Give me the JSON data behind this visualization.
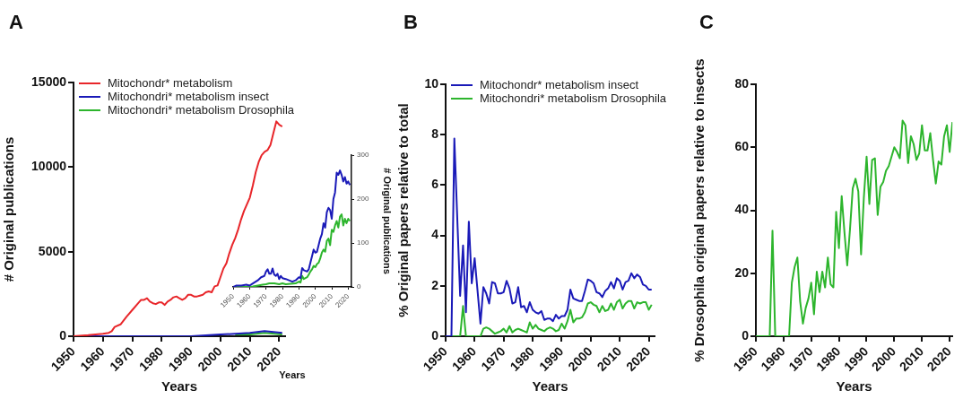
{
  "chart_data": [
    {
      "type": "line",
      "title": "A",
      "xlabel": "Years",
      "ylabel": "# Original publications",
      "xlim": [
        1950,
        2022
      ],
      "xticks": [
        1950,
        1960,
        1970,
        1980,
        1990,
        2000,
        2010,
        2020
      ],
      "ylim": [
        0,
        15000
      ],
      "yticks": [
        0,
        5000,
        10000,
        15000
      ],
      "legend": "top left",
      "series": [
        {
          "name": "Mitochondr* metabolism",
          "color": "#e8262a",
          "x": [
            1950,
            1955,
            1960,
            1962,
            1963,
            1964,
            1966,
            1968,
            1970,
            1972,
            1973,
            1974,
            1975,
            1976,
            1977,
            1978,
            1979,
            1980,
            1981,
            1982,
            1983,
            1984,
            1985,
            1986,
            1987,
            1988,
            1989,
            1990,
            1991,
            1992,
            1993,
            1994,
            1995,
            1996,
            1997,
            1998,
            1999,
            2000,
            2001,
            2002,
            2003,
            2004,
            2005,
            2006,
            2007,
            2008,
            2009,
            2010,
            2011,
            2012,
            2013,
            2014,
            2015,
            2016,
            2017,
            2018,
            2019,
            2020,
            2021
          ],
          "values": [
            0,
            60,
            150,
            200,
            300,
            550,
            700,
            1150,
            1550,
            1950,
            2150,
            2150,
            2250,
            2050,
            1950,
            1900,
            2000,
            2000,
            1850,
            2050,
            2150,
            2300,
            2350,
            2250,
            2150,
            2250,
            2450,
            2450,
            2350,
            2350,
            2400,
            2450,
            2600,
            2650,
            2600,
            2950,
            3000,
            3500,
            4000,
            4300,
            4900,
            5400,
            5800,
            6300,
            6900,
            7400,
            7800,
            8200,
            8900,
            9700,
            10300,
            10700,
            10900,
            11000,
            11300,
            12000,
            12700,
            12500,
            12400
          ]
        },
        {
          "name": "Mitochondri* metabolism insect",
          "color": "#1a1ab8",
          "x": [
            1950,
            1990,
            2000,
            2010,
            2015,
            2021
          ],
          "values": [
            0,
            0,
            100,
            200,
            300,
            200
          ]
        },
        {
          "name": "Mitochondri* metabolism Drosophila",
          "color": "#2db52d",
          "x": [
            2005,
            2010,
            2015,
            2021
          ],
          "values": [
            100,
            100,
            200,
            100
          ]
        }
      ]
    },
    {
      "type": "line",
      "xlabel": "Years",
      "ylabel": "# Original publications",
      "xlim": [
        1950,
        2022
      ],
      "xticks": [
        1950,
        1960,
        1970,
        1980,
        1990,
        2000,
        2010,
        2020
      ],
      "ylim": [
        0,
        300
      ],
      "yticks": [
        0,
        100,
        200,
        300
      ],
      "series": [
        {
          "color": "#1a1ab8",
          "x": [
            1950,
            1952,
            1955,
            1958,
            1960,
            1962,
            1965,
            1967,
            1969,
            1970,
            1971,
            1972,
            1973,
            1974,
            1975,
            1976,
            1977,
            1978,
            1979,
            1980,
            1982,
            1984,
            1986,
            1988,
            1990,
            1991,
            1992,
            1993,
            1995,
            1996,
            1997,
            1998,
            1999,
            2000,
            2001,
            2002,
            2003,
            2004,
            2005,
            2006,
            2007,
            2008,
            2009,
            2010,
            2011,
            2012,
            2013,
            2014,
            2015,
            2016,
            2017,
            2018,
            2019,
            2020,
            2021
          ],
          "values": [
            0,
            3,
            3,
            5,
            3,
            8,
            15,
            22,
            25,
            35,
            40,
            30,
            30,
            42,
            28,
            25,
            30,
            18,
            25,
            20,
            18,
            15,
            12,
            15,
            22,
            20,
            43,
            38,
            35,
            40,
            55,
            70,
            85,
            78,
            80,
            95,
            110,
            120,
            145,
            135,
            170,
            180,
            175,
            155,
            200,
            215,
            260,
            255,
            265,
            255,
            240,
            250,
            235,
            240,
            232
          ]
        },
        {
          "color": "#2db52d",
          "x": [
            1950,
            1960,
            1962,
            1965,
            1968,
            1970,
            1972,
            1975,
            1978,
            1980,
            1982,
            1985,
            1988,
            1990,
            1991,
            1992,
            1993,
            1995,
            1996,
            1997,
            1998,
            1999,
            2000,
            2001,
            2002,
            2003,
            2004,
            2005,
            2006,
            2007,
            2008,
            2009,
            2010,
            2011,
            2012,
            2013,
            2014,
            2015,
            2016,
            2017,
            2018,
            2019,
            2020,
            2021
          ],
          "values": [
            0,
            0,
            1,
            3,
            5,
            6,
            8,
            8,
            6,
            8,
            6,
            7,
            8,
            12,
            10,
            25,
            18,
            22,
            28,
            35,
            40,
            48,
            45,
            52,
            55,
            65,
            78,
            85,
            80,
            105,
            110,
            95,
            130,
            125,
            140,
            150,
            135,
            160,
            165,
            140,
            155,
            145,
            155,
            150
          ]
        }
      ]
    },
    {
      "type": "line",
      "title": "B",
      "xlabel": "Years",
      "ylabel": "% Original papers relative to total",
      "xlim": [
        1950,
        2022
      ],
      "xticks": [
        1950,
        1960,
        1970,
        1980,
        1990,
        2000,
        2010,
        2020
      ],
      "ylim": [
        0,
        10
      ],
      "yticks": [
        0,
        2,
        4,
        6,
        8,
        10
      ],
      "legend": "top left",
      "series": [
        {
          "name": "Mitochondr* metabolism insect",
          "color": "#1a1ab8",
          "x": [
            1950,
            1952,
            1953,
            1955,
            1956,
            1957,
            1958,
            1959,
            1960,
            1962,
            1963,
            1964,
            1965,
            1966,
            1967,
            1968,
            1969,
            1970,
            1971,
            1972,
            1973,
            1974,
            1975,
            1976,
            1977,
            1978,
            1979,
            1980,
            1981,
            1982,
            1983,
            1984,
            1985,
            1986,
            1987,
            1988,
            1989,
            1990,
            1991,
            1992,
            1993,
            1994,
            1995,
            1996,
            1997,
            1998,
            1999,
            2000,
            2001,
            2002,
            2003,
            2004,
            2005,
            2006,
            2007,
            2008,
            2009,
            2010,
            2011,
            2012,
            2013,
            2014,
            2015,
            2016,
            2017,
            2018,
            2019,
            2020,
            2021
          ],
          "values": [
            0,
            0,
            7.85,
            1.6,
            3.6,
            0.95,
            4.55,
            2.1,
            3.1,
            0.5,
            1.95,
            1.7,
            1.3,
            2.15,
            2.1,
            1.7,
            1.7,
            1.75,
            2.2,
            1.9,
            1.3,
            1.35,
            1.95,
            1.15,
            1.2,
            0.95,
            1.35,
            1.05,
            0.95,
            0.9,
            1.0,
            0.65,
            0.7,
            0.7,
            0.6,
            0.85,
            0.7,
            0.8,
            0.8,
            1.05,
            1.85,
            1.5,
            1.45,
            1.4,
            1.4,
            1.8,
            2.25,
            2.2,
            2.1,
            1.75,
            1.7,
            1.55,
            1.8,
            1.9,
            2.15,
            1.9,
            2.3,
            2.2,
            1.85,
            2.15,
            2.2,
            2.5,
            2.3,
            2.45,
            2.35,
            2.05,
            2.0,
            1.85,
            1.85
          ]
        },
        {
          "name": "Mitochondri* metabolism Drosophila",
          "color": "#2db52d",
          "x": [
            1950,
            1955,
            1956,
            1957,
            1962,
            1963,
            1964,
            1965,
            1966,
            1967,
            1968,
            1969,
            1970,
            1971,
            1972,
            1973,
            1974,
            1975,
            1976,
            1977,
            1978,
            1979,
            1980,
            1981,
            1982,
            1983,
            1984,
            1985,
            1986,
            1987,
            1988,
            1989,
            1990,
            1991,
            1992,
            1993,
            1994,
            1995,
            1996,
            1997,
            1998,
            1999,
            2000,
            2001,
            2002,
            2003,
            2004,
            2005,
            2006,
            2007,
            2008,
            2009,
            2010,
            2011,
            2012,
            2013,
            2014,
            2015,
            2016,
            2017,
            2018,
            2019,
            2020,
            2021
          ],
          "values": [
            0,
            0,
            1.2,
            0,
            0,
            0.3,
            0.35,
            0.3,
            0.2,
            0.1,
            0.15,
            0.2,
            0.3,
            0.15,
            0.4,
            0.15,
            0.25,
            0.3,
            0.25,
            0.2,
            0.15,
            0.55,
            0.3,
            0.45,
            0.3,
            0.25,
            0.2,
            0.3,
            0.35,
            0.3,
            0.2,
            0.25,
            0.5,
            0.3,
            0.6,
            1.05,
            0.55,
            0.7,
            0.7,
            0.75,
            0.95,
            1.3,
            1.35,
            1.25,
            1.2,
            0.95,
            1.2,
            1.0,
            1.05,
            1.3,
            1.05,
            1.35,
            1.45,
            1.1,
            1.3,
            1.4,
            1.4,
            1.1,
            1.35,
            1.3,
            1.35,
            1.35,
            1.05,
            1.25
          ]
        }
      ]
    },
    {
      "type": "line",
      "title": "C",
      "xlabel": "Years",
      "ylabel": "% Drosophila original papers relative to insects",
      "xlim": [
        1950,
        2021
      ],
      "xticks": [
        1950,
        1960,
        1970,
        1980,
        1990,
        2000,
        2010,
        2020
      ],
      "ylim": [
        0,
        80
      ],
      "yticks": [
        0,
        20,
        40,
        60,
        80
      ],
      "series": [
        {
          "color": "#2db52d",
          "x": [
            1950,
            1955,
            1956,
            1957,
            1962,
            1963,
            1964,
            1965,
            1966,
            1967,
            1968,
            1969,
            1970,
            1971,
            1972,
            1973,
            1974,
            1975,
            1976,
            1977,
            1978,
            1979,
            1980,
            1981,
            1982,
            1983,
            1984,
            1985,
            1986,
            1987,
            1988,
            1989,
            1990,
            1991,
            1992,
            1993,
            1994,
            1995,
            1996,
            1997,
            1998,
            1999,
            2000,
            2001,
            2002,
            2003,
            2004,
            2005,
            2006,
            2007,
            2008,
            2009,
            2010,
            2011,
            2012,
            2013,
            2014,
            2015,
            2016,
            2017,
            2018,
            2019,
            2020,
            2021
          ],
          "values": [
            0,
            0,
            33.5,
            0,
            0,
            17,
            22,
            25,
            11,
            4,
            9,
            12,
            17,
            7,
            20.5,
            14,
            20.5,
            15.5,
            25,
            16.5,
            15.5,
            39.5,
            28,
            44.5,
            33,
            22.5,
            34,
            47,
            50,
            46,
            26,
            44,
            57,
            42,
            56,
            56.5,
            38.5,
            47.5,
            49,
            52.5,
            54,
            57,
            60,
            58.5,
            56.5,
            68.5,
            67,
            55,
            63.5,
            61,
            56,
            58,
            67,
            59,
            59,
            64.5,
            56,
            48.5,
            55.5,
            54.5,
            63.5,
            67,
            58.5,
            68
          ]
        }
      ]
    }
  ]
}
